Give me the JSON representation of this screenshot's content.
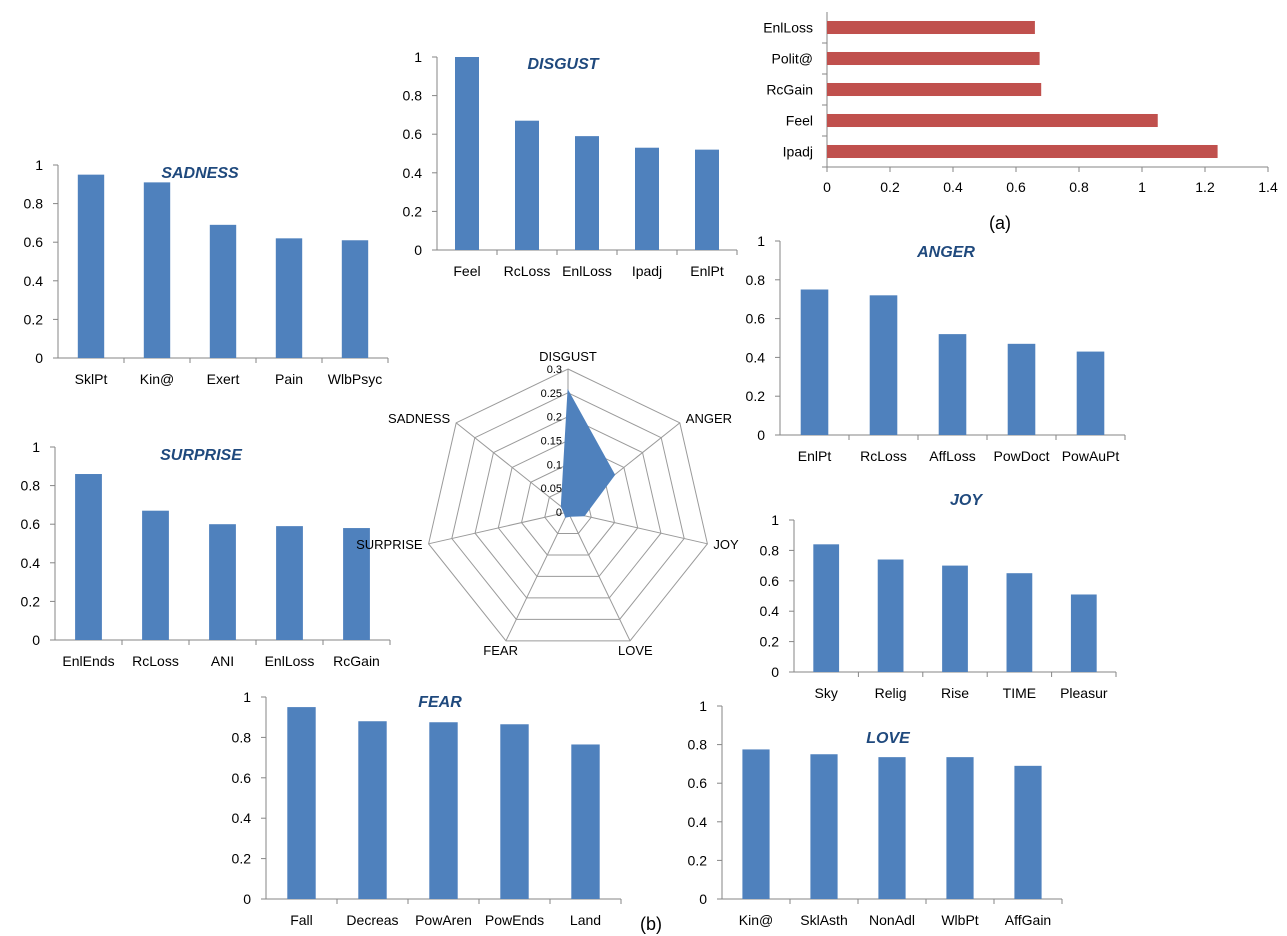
{
  "figure": {
    "label_a": "(a)",
    "label_b": "(b)"
  },
  "chart_data": [
    {
      "id": "disgust",
      "type": "bar",
      "title": "DISGUST",
      "color": "#4f81bd",
      "categories": [
        "Feel",
        "RcLoss",
        "EnlLoss",
        "Ipadj",
        "EnlPt"
      ],
      "values": [
        1.0,
        0.67,
        0.59,
        0.53,
        0.52
      ],
      "ylim": [
        0,
        1
      ],
      "yticks": [
        "0",
        "0.2",
        "0.4",
        "0.6",
        "0.8",
        "1"
      ]
    },
    {
      "id": "sadness",
      "type": "bar",
      "title": "SADNESS",
      "color": "#4f81bd",
      "categories": [
        "SklPt",
        "Kin@",
        "Exert",
        "Pain",
        "WlbPsyc"
      ],
      "values": [
        0.95,
        0.91,
        0.69,
        0.62,
        0.61
      ],
      "ylim": [
        0,
        1
      ],
      "yticks": [
        "0",
        "0.2",
        "0.4",
        "0.6",
        "0.8",
        "1"
      ]
    },
    {
      "id": "surprise",
      "type": "bar",
      "title": "SURPRISE",
      "color": "#4f81bd",
      "categories": [
        "EnlEnds",
        "RcLoss",
        "ANI",
        "EnlLoss",
        "RcGain"
      ],
      "values": [
        0.86,
        0.67,
        0.6,
        0.59,
        0.58
      ],
      "ylim": [
        0,
        1
      ],
      "yticks": [
        "0",
        "0.2",
        "0.4",
        "0.6",
        "0.8",
        "1"
      ]
    },
    {
      "id": "anger",
      "type": "bar",
      "title": "ANGER",
      "color": "#4f81bd",
      "categories": [
        "EnlPt",
        "RcLoss",
        "AffLoss",
        "PowDoct",
        "PowAuPt"
      ],
      "values": [
        0.75,
        0.72,
        0.52,
        0.47,
        0.43
      ],
      "ylim": [
        0,
        1
      ],
      "yticks": [
        "0",
        "0.2",
        "0.4",
        "0.6",
        "0.8",
        "1"
      ]
    },
    {
      "id": "joy",
      "type": "bar",
      "title": "JOY",
      "color": "#4f81bd",
      "categories": [
        "Sky",
        "Relig",
        "Rise",
        "TIME",
        "Pleasur"
      ],
      "values": [
        0.84,
        0.74,
        0.7,
        0.65,
        0.51
      ],
      "ylim": [
        0,
        1
      ],
      "yticks": [
        "0",
        "0.2",
        "0.4",
        "0.6",
        "0.8",
        "1"
      ]
    },
    {
      "id": "fear",
      "type": "bar",
      "title": "FEAR",
      "color": "#4f81bd",
      "categories": [
        "Fall",
        "Decreas",
        "PowAren",
        "PowEnds",
        "Land"
      ],
      "values": [
        0.95,
        0.88,
        0.875,
        0.865,
        0.765
      ],
      "ylim": [
        0,
        1
      ],
      "yticks": [
        "0",
        "0.2",
        "0.4",
        "0.6",
        "0.8",
        "1"
      ]
    },
    {
      "id": "love",
      "type": "bar",
      "title": "LOVE",
      "color": "#4f81bd",
      "categories": [
        "Kin@",
        "SklAsth",
        "NonAdl",
        "WlbPt",
        "AffGain"
      ],
      "values": [
        0.775,
        0.75,
        0.735,
        0.735,
        0.69
      ],
      "ylim": [
        0,
        1
      ],
      "yticks": [
        "0",
        "0.2",
        "0.4",
        "0.6",
        "0.8",
        "1"
      ]
    },
    {
      "id": "hbar",
      "type": "bar",
      "orientation": "horizontal",
      "title": "",
      "color": "#c0504d",
      "categories": [
        "Ipadj",
        "Feel",
        "RcGain",
        "Polit@",
        "EnlLoss"
      ],
      "values": [
        1.24,
        1.05,
        0.68,
        0.675,
        0.66
      ],
      "xlim": [
        0,
        1.4
      ],
      "xticks": [
        "0",
        "0.2",
        "0.4",
        "0.6",
        "0.8",
        "1",
        "1.2",
        "1.4"
      ]
    },
    {
      "id": "radar",
      "type": "radar",
      "title": "",
      "color": "#4f81bd",
      "axes": [
        "DISGUST",
        "ANGER",
        "JOY",
        "LOVE",
        "FEAR",
        "SURPRISE",
        "SADNESS"
      ],
      "values": [
        0.255,
        0.125,
        0.035,
        0.01,
        0.012,
        0.008,
        0.018
      ],
      "rlim": [
        0,
        0.3
      ],
      "rticks": [
        "0",
        "0.05",
        "0.1",
        "0.15",
        "0.2",
        "0.25",
        "0.3"
      ]
    }
  ]
}
